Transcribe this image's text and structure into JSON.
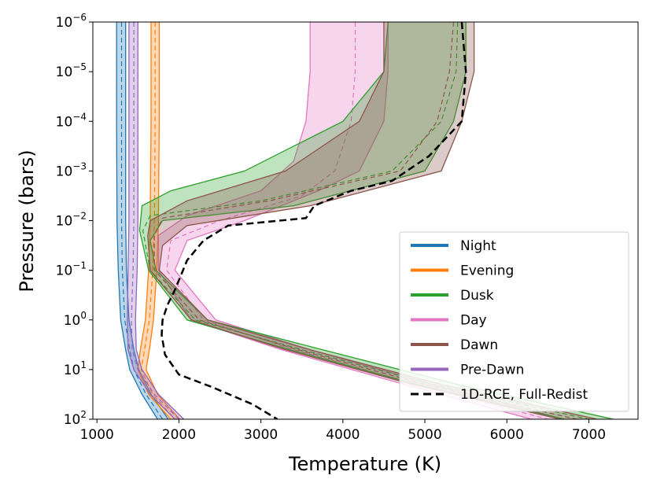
{
  "chart_data": {
    "type": "line",
    "xlabel": "Temperature (K)",
    "ylabel": "Pressure (bars)",
    "xlim": [
      950,
      7600
    ],
    "ylim": [
      100,
      1e-06
    ],
    "yscale": "log",
    "xticks": [
      1000,
      2000,
      3000,
      4000,
      5000,
      6000,
      7000
    ],
    "xtick_labels": [
      "1000",
      "2000",
      "3000",
      "4000",
      "5000",
      "6000",
      "7000"
    ],
    "yticks": [
      1e-06,
      1e-05,
      0.0001,
      0.001,
      0.01,
      0.1,
      1,
      10,
      100
    ],
    "ytick_labels": [
      {
        "base": "10",
        "exp": "−6"
      },
      {
        "base": "10",
        "exp": "−5"
      },
      {
        "base": "10",
        "exp": "−4"
      },
      {
        "base": "10",
        "exp": "−3"
      },
      {
        "base": "10",
        "exp": "−2"
      },
      {
        "base": "10",
        "exp": "−1"
      },
      {
        "base": "10",
        "exp": "0"
      },
      {
        "base": "10",
        "exp": "1"
      },
      {
        "base": "10",
        "exp": "2"
      }
    ],
    "legend_position": "lower-right",
    "series": [
      {
        "name": "Night",
        "color": "#1f77b4",
        "median": [
          [
            1300,
            -6
          ],
          [
            1300,
            -4
          ],
          [
            1300,
            -2
          ],
          [
            1310,
            -1
          ],
          [
            1340,
            0
          ],
          [
            1400,
            0.6
          ],
          [
            1450,
            1.0
          ],
          [
            1600,
            1.5
          ],
          [
            1800,
            2.0
          ]
        ],
        "low": [
          [
            1240,
            -6
          ],
          [
            1240,
            -4
          ],
          [
            1245,
            -2
          ],
          [
            1260,
            -1
          ],
          [
            1290,
            0
          ],
          [
            1350,
            0.6
          ],
          [
            1400,
            1.0
          ],
          [
            1550,
            1.5
          ],
          [
            1740,
            2.0
          ]
        ],
        "high": [
          [
            1350,
            -6
          ],
          [
            1350,
            -4
          ],
          [
            1350,
            -2
          ],
          [
            1360,
            -1
          ],
          [
            1390,
            0
          ],
          [
            1450,
            0.6
          ],
          [
            1510,
            1.0
          ],
          [
            1660,
            1.5
          ],
          [
            1870,
            2.0
          ]
        ]
      },
      {
        "name": "Evening",
        "color": "#ff7f0e",
        "median": [
          [
            1710,
            -6
          ],
          [
            1710,
            -4
          ],
          [
            1700,
            -2
          ],
          [
            1680,
            -1
          ],
          [
            1640,
            0
          ],
          [
            1580,
            0.6
          ],
          [
            1540,
            1.0
          ],
          [
            1680,
            1.5
          ],
          [
            1950,
            2.0
          ]
        ],
        "low": [
          [
            1660,
            -6
          ],
          [
            1660,
            -4
          ],
          [
            1650,
            -2
          ],
          [
            1630,
            -1
          ],
          [
            1590,
            0
          ],
          [
            1530,
            0.6
          ],
          [
            1500,
            1.0
          ],
          [
            1630,
            1.5
          ],
          [
            1900,
            2.0
          ]
        ],
        "high": [
          [
            1760,
            -6
          ],
          [
            1760,
            -4
          ],
          [
            1750,
            -2
          ],
          [
            1730,
            -1
          ],
          [
            1690,
            0
          ],
          [
            1640,
            0.6
          ],
          [
            1600,
            1.0
          ],
          [
            1740,
            1.5
          ],
          [
            2010,
            2.0
          ]
        ]
      },
      {
        "name": "Dusk",
        "color": "#2ca02c",
        "median": [
          [
            5400,
            -6
          ],
          [
            5380,
            -5
          ],
          [
            5200,
            -4
          ],
          [
            4600,
            -3
          ],
          [
            3000,
            -2.4
          ],
          [
            1650,
            -2.1
          ],
          [
            1560,
            -1.8
          ],
          [
            1650,
            -1.0
          ],
          [
            2200,
            0.0
          ],
          [
            3500,
            0.6
          ],
          [
            5100,
            1.3
          ],
          [
            7000,
            2.0
          ]
        ],
        "low": [
          [
            4550,
            -6
          ],
          [
            4500,
            -5
          ],
          [
            4000,
            -4
          ],
          [
            2800,
            -3
          ],
          [
            1900,
            -2.6
          ],
          [
            1550,
            -2.3
          ],
          [
            1520,
            -1.8
          ],
          [
            1630,
            -1.0
          ],
          [
            2100,
            0.0
          ],
          [
            3350,
            0.6
          ],
          [
            4900,
            1.3
          ],
          [
            6700,
            2.0
          ]
        ],
        "high": [
          [
            5500,
            -6
          ],
          [
            5500,
            -5
          ],
          [
            5350,
            -4
          ],
          [
            5000,
            -3
          ],
          [
            3400,
            -2.3
          ],
          [
            1800,
            -2.0
          ],
          [
            1650,
            -1.6
          ],
          [
            1720,
            -1.0
          ],
          [
            2350,
            0.0
          ],
          [
            3750,
            0.6
          ],
          [
            5400,
            1.3
          ],
          [
            7300,
            2.0
          ]
        ]
      },
      {
        "name": "Day",
        "color": "#e377c2",
        "median": [
          [
            4150,
            -6
          ],
          [
            4150,
            -5
          ],
          [
            4100,
            -4
          ],
          [
            3900,
            -3
          ],
          [
            3500,
            -2.5
          ],
          [
            2500,
            -2.0
          ],
          [
            1900,
            -1.6
          ],
          [
            1850,
            -1.0
          ],
          [
            2300,
            0.0
          ],
          [
            3400,
            0.6
          ],
          [
            4900,
            1.3
          ],
          [
            6500,
            2.0
          ]
        ],
        "low": [
          [
            3600,
            -6
          ],
          [
            3600,
            -5
          ],
          [
            3550,
            -4
          ],
          [
            3400,
            -3.2
          ],
          [
            3000,
            -2.6
          ],
          [
            2100,
            -2.1
          ],
          [
            1750,
            -1.7
          ],
          [
            1750,
            -1.0
          ],
          [
            2150,
            0.0
          ],
          [
            3250,
            0.6
          ],
          [
            4750,
            1.3
          ],
          [
            6300,
            2.0
          ]
        ],
        "high": [
          [
            4550,
            -6
          ],
          [
            4550,
            -5
          ],
          [
            4500,
            -4
          ],
          [
            4200,
            -3
          ],
          [
            3700,
            -2.6
          ],
          [
            2800,
            -2.0
          ],
          [
            2100,
            -1.6
          ],
          [
            1950,
            -1.0
          ],
          [
            2450,
            0.0
          ],
          [
            3600,
            0.6
          ],
          [
            5100,
            1.3
          ],
          [
            6700,
            2.0
          ]
        ]
      },
      {
        "name": "Dawn",
        "color": "#8c564b",
        "median": [
          [
            5350,
            -6
          ],
          [
            5300,
            -5
          ],
          [
            5150,
            -4
          ],
          [
            4700,
            -3
          ],
          [
            3100,
            -2.4
          ],
          [
            1800,
            -2.05
          ],
          [
            1700,
            -1.7
          ],
          [
            1700,
            -1.0
          ],
          [
            2250,
            0.0
          ],
          [
            3450,
            0.6
          ],
          [
            5000,
            1.3
          ],
          [
            6850,
            2.0
          ]
        ],
        "low": [
          [
            4500,
            -6
          ],
          [
            4500,
            -5
          ],
          [
            4200,
            -4
          ],
          [
            3300,
            -3
          ],
          [
            2100,
            -2.4
          ],
          [
            1650,
            -2.0
          ],
          [
            1620,
            -1.7
          ],
          [
            1650,
            -1.0
          ],
          [
            2150,
            0.0
          ],
          [
            3300,
            0.6
          ],
          [
            4850,
            1.3
          ],
          [
            6650,
            2.0
          ]
        ],
        "high": [
          [
            5600,
            -6
          ],
          [
            5600,
            -5
          ],
          [
            5450,
            -4
          ],
          [
            5200,
            -3
          ],
          [
            3600,
            -2.3
          ],
          [
            2100,
            -1.9
          ],
          [
            1800,
            -1.5
          ],
          [
            1760,
            -1.0
          ],
          [
            2350,
            0.0
          ],
          [
            3600,
            0.6
          ],
          [
            5200,
            1.3
          ],
          [
            7100,
            2.0
          ]
        ]
      },
      {
        "name": "Pre-Dawn",
        "color": "#9467bd",
        "median": [
          [
            1450,
            -6
          ],
          [
            1450,
            -4
          ],
          [
            1450,
            -2
          ],
          [
            1440,
            -1
          ],
          [
            1420,
            0
          ],
          [
            1430,
            0.6
          ],
          [
            1500,
            1.0
          ],
          [
            1700,
            1.5
          ],
          [
            2000,
            2.0
          ]
        ],
        "low": [
          [
            1390,
            -6
          ],
          [
            1390,
            -4
          ],
          [
            1390,
            -2
          ],
          [
            1380,
            -1
          ],
          [
            1370,
            0
          ],
          [
            1380,
            0.6
          ],
          [
            1450,
            1.0
          ],
          [
            1650,
            1.5
          ],
          [
            1950,
            2.0
          ]
        ],
        "high": [
          [
            1500,
            -6
          ],
          [
            1500,
            -4
          ],
          [
            1500,
            -2
          ],
          [
            1490,
            -1
          ],
          [
            1470,
            0
          ],
          [
            1480,
            0.6
          ],
          [
            1550,
            1.0
          ],
          [
            1750,
            1.5
          ],
          [
            2060,
            2.0
          ]
        ]
      },
      {
        "name": "1D-RCE, Full-Redist",
        "color": "#000000",
        "curve": [
          [
            5450,
            -6
          ],
          [
            5500,
            -5
          ],
          [
            5450,
            -4
          ],
          [
            5050,
            -3.3
          ],
          [
            4600,
            -2.8
          ],
          [
            4100,
            -2.6
          ],
          [
            3950,
            -2.5
          ],
          [
            3650,
            -2.3
          ],
          [
            3550,
            -2.05
          ],
          [
            2600,
            -1.9
          ],
          [
            2300,
            -1.6
          ],
          [
            2100,
            -1.2
          ],
          [
            1950,
            -0.6
          ],
          [
            1860,
            -0.3
          ],
          [
            1800,
            0.0
          ],
          [
            1790,
            0.3
          ],
          [
            1830,
            0.7
          ],
          [
            2000,
            1.1
          ],
          [
            2400,
            1.35
          ],
          [
            2900,
            1.7
          ],
          [
            3200,
            2.0
          ]
        ]
      }
    ]
  }
}
